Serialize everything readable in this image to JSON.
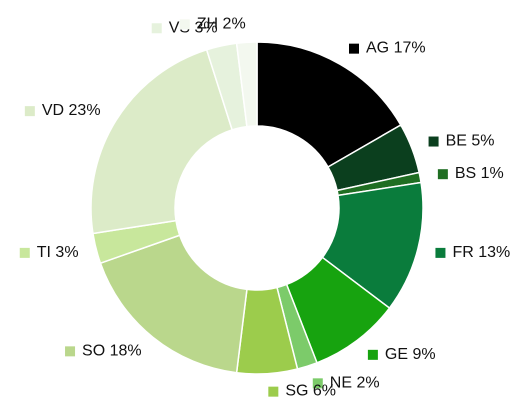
{
  "chart_data": {
    "type": "donut",
    "categories": [
      "AG",
      "BE",
      "BS",
      "FR",
      "GE",
      "NE",
      "SG",
      "SO",
      "TI",
      "VD",
      "VS",
      "ZH"
    ],
    "values": [
      17,
      5,
      1,
      13,
      9,
      2,
      6,
      18,
      3,
      23,
      3,
      2
    ],
    "value_labels": [
      "17%",
      "5%",
      "1%",
      "13%",
      "9%",
      "2%",
      "6%",
      "18%",
      "3%",
      "23%",
      "3%",
      "2%"
    ],
    "colors": [
      "#000000",
      "#0b3f1e",
      "#1f6e22",
      "#0a7c3c",
      "#17a30f",
      "#7ccb6a",
      "#9ccc4c",
      "#bad78c",
      "#c8e79c",
      "#dcebc8",
      "#e6f2dd",
      "#f3f8ef"
    ],
    "legend": "labels"
  }
}
